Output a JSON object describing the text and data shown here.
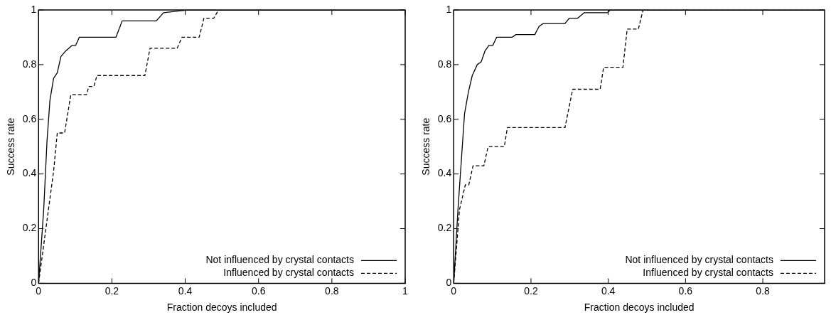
{
  "chart_data": [
    {
      "type": "line",
      "xlabel": "Fraction decoys included",
      "ylabel": "Success rate",
      "xlim": [
        0,
        1
      ],
      "ylim": [
        0,
        1
      ],
      "xticks": [
        0,
        0.2,
        0.4,
        0.6,
        0.8,
        1
      ],
      "yticks": [
        0,
        0.2,
        0.4,
        0.6,
        0.8,
        1
      ],
      "grid": false,
      "legend": "bottom right",
      "marker": "none",
      "series": [
        {
          "name": "Not influenced by crystal contacts",
          "color": "#000000",
          "line_style": "solid",
          "x": [
            0,
            0.014,
            0.023,
            0.031,
            0.041,
            0.051,
            0.061,
            0.074,
            0.091,
            0.101,
            0.111,
            0.211,
            0.228,
            0.321,
            0.341,
            0.405,
            1
          ],
          "values": [
            0,
            0.27,
            0.52,
            0.67,
            0.75,
            0.77,
            0.83,
            0.85,
            0.87,
            0.87,
            0.9,
            0.9,
            0.96,
            0.96,
            0.99,
            1,
            1
          ]
        },
        {
          "name": "Influenced by crystal contacts",
          "color": "#000000",
          "line_style": "dashed",
          "x": [
            0,
            0.041,
            0.051,
            0.071,
            0.088,
            0.131,
            0.137,
            0.151,
            0.159,
            0.29,
            0.304,
            0.378,
            0.391,
            0.438,
            0.451,
            0.478,
            0.491,
            1
          ],
          "values": [
            0,
            0.41,
            0.55,
            0.55,
            0.69,
            0.69,
            0.72,
            0.72,
            0.76,
            0.76,
            0.86,
            0.86,
            0.9,
            0.9,
            0.97,
            0.97,
            1,
            1
          ]
        }
      ]
    },
    {
      "type": "line",
      "xlabel": "Fraction decoys included",
      "ylabel": "Success rate",
      "xlim": [
        0,
        0.96
      ],
      "ylim": [
        0,
        1
      ],
      "xticks": [
        0,
        0.2,
        0.4,
        0.6,
        0.8
      ],
      "yticks": [
        0,
        0.2,
        0.4,
        0.6,
        0.8,
        1
      ],
      "grid": false,
      "legend": "bottom right",
      "marker": "none",
      "series": [
        {
          "name": "Not influenced by crystal contacts",
          "color": "#000000",
          "line_style": "solid",
          "x": [
            0,
            0.011,
            0.028,
            0.038,
            0.048,
            0.061,
            0.071,
            0.081,
            0.091,
            0.101,
            0.111,
            0.151,
            0.161,
            0.21,
            0.221,
            0.231,
            0.288,
            0.299,
            0.321,
            0.338,
            0.398,
            0.405,
            0.96
          ],
          "values": [
            0,
            0.27,
            0.62,
            0.7,
            0.76,
            0.8,
            0.81,
            0.85,
            0.87,
            0.87,
            0.9,
            0.9,
            0.91,
            0.91,
            0.94,
            0.95,
            0.95,
            0.97,
            0.97,
            0.99,
            0.99,
            1,
            1
          ]
        },
        {
          "name": "Influenced by crystal contacts",
          "color": "#000000",
          "line_style": "dashed",
          "x": [
            0,
            0.015,
            0.03,
            0.039,
            0.05,
            0.078,
            0.089,
            0.131,
            0.139,
            0.288,
            0.308,
            0.379,
            0.388,
            0.438,
            0.449,
            0.478,
            0.49,
            0.96
          ],
          "values": [
            0,
            0.27,
            0.36,
            0.36,
            0.43,
            0.43,
            0.5,
            0.5,
            0.57,
            0.57,
            0.71,
            0.71,
            0.79,
            0.79,
            0.93,
            0.93,
            1,
            1
          ]
        }
      ]
    }
  ]
}
